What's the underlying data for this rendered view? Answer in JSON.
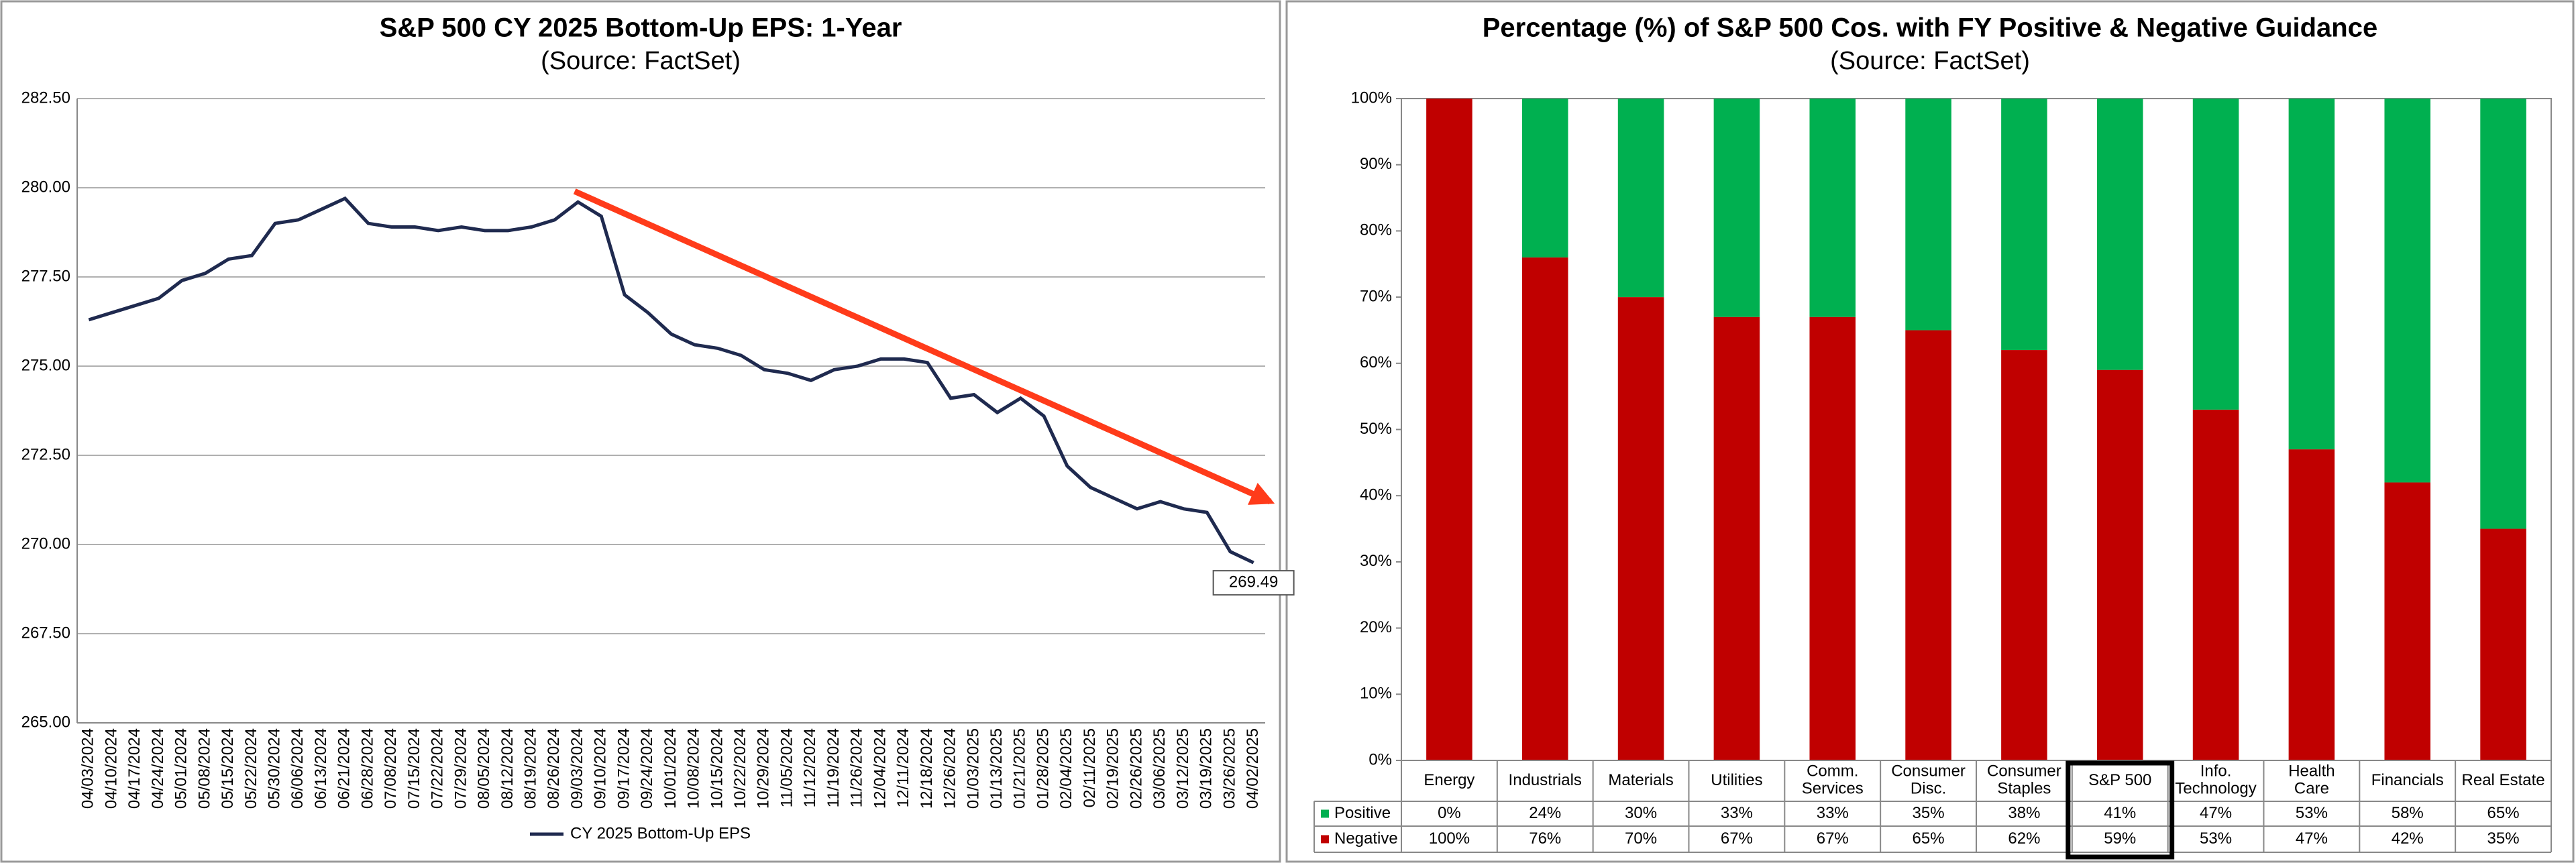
{
  "chart_data": [
    {
      "type": "line",
      "title": "S&P 500 CY 2025 Bottom-Up  EPS: 1-Year",
      "subtitle": "(Source: FactSet)",
      "categories": [
        "04/03/2024",
        "04/10/2024",
        "04/17/2024",
        "04/24/2024",
        "05/01/2024",
        "05/08/2024",
        "05/15/2024",
        "05/22/2024",
        "05/30/2024",
        "06/06/2024",
        "06/13/2024",
        "06/21/2024",
        "06/28/2024",
        "07/08/2024",
        "07/15/2024",
        "07/22/2024",
        "07/29/2024",
        "08/05/2024",
        "08/12/2024",
        "08/19/2024",
        "08/26/2024",
        "09/03/2024",
        "09/10/2024",
        "09/17/2024",
        "09/24/2024",
        "10/01/2024",
        "10/08/2024",
        "10/15/2024",
        "10/22/2024",
        "10/29/2024",
        "11/05/2024",
        "11/12/2024",
        "11/19/2024",
        "11/26/2024",
        "12/04/2024",
        "12/11/2024",
        "12/18/2024",
        "12/26/2024",
        "01/03/2025",
        "01/13/2025",
        "01/21/2025",
        "01/28/2025",
        "02/04/2025",
        "02/11/2025",
        "02/19/2025",
        "02/26/2025",
        "03/06/2025",
        "03/12/2025",
        "03/19/2025",
        "03/26/2025",
        "04/02/2025"
      ],
      "series": [
        {
          "name": "CY 2025 Bottom-Up EPS",
          "color": "#1f2a4f",
          "values": [
            276.3,
            276.5,
            276.7,
            276.9,
            277.4,
            277.6,
            278.0,
            278.1,
            279.0,
            279.1,
            279.4,
            279.7,
            279.0,
            278.9,
            278.9,
            278.8,
            278.9,
            278.8,
            278.8,
            278.9,
            279.1,
            279.6,
            279.2,
            277.0,
            276.5,
            275.9,
            275.6,
            275.5,
            275.3,
            274.9,
            274.8,
            274.6,
            274.9,
            275.0,
            275.2,
            275.2,
            275.1,
            274.1,
            274.2,
            273.7,
            274.1,
            273.6,
            272.2,
            271.6,
            271.3,
            271.0,
            271.2,
            271.0,
            270.9,
            269.8,
            269.49
          ]
        }
      ],
      "annotation": "269.49",
      "ylim": [
        265,
        282.5
      ],
      "yticks": [
        {
          "value": 265,
          "label": "265.00"
        },
        {
          "value": 267.5,
          "label": "267.50"
        },
        {
          "value": 270,
          "label": "270.00"
        },
        {
          "value": 272.5,
          "label": "272.50"
        },
        {
          "value": 275,
          "label": "275.00"
        },
        {
          "value": 277.5,
          "label": "277.50"
        },
        {
          "value": 280,
          "label": "280.00"
        },
        {
          "value": 282.5,
          "label": "282.50"
        }
      ],
      "grid": true
    },
    {
      "type": "stacked_bar",
      "title": "Percentage (%) of S&P 500 Cos. with FY Positive & Negative Guidance",
      "subtitle": "(Source: FactSet)",
      "categories": [
        "Energy",
        "Industrials",
        "Materials",
        "Utilities",
        "Comm.\nServices",
        "Consumer\nDisc.",
        "Consumer\nStaples",
        "S&P 500",
        "Info.\nTechnology",
        "Health\nCare",
        "Financials",
        "Real Estate"
      ],
      "series": [
        {
          "name": "Positive",
          "color": "#00b050",
          "values": [
            0,
            24,
            30,
            33,
            33,
            35,
            38,
            41,
            47,
            53,
            58,
            65
          ],
          "value_labels": [
            "0%",
            "24%",
            "30%",
            "33%",
            "33%",
            "35%",
            "38%",
            "41%",
            "47%",
            "53%",
            "58%",
            "65%"
          ]
        },
        {
          "name": "Negative",
          "color": "#c00000",
          "values": [
            100,
            76,
            70,
            67,
            67,
            65,
            62,
            59,
            53,
            47,
            42,
            35
          ],
          "value_labels": [
            "100%",
            "76%",
            "70%",
            "67%",
            "67%",
            "65%",
            "62%",
            "59%",
            "53%",
            "47%",
            "42%",
            "35%"
          ]
        }
      ],
      "ylim": [
        0,
        100
      ],
      "yticks": [
        {
          "value": 0,
          "label": "0%"
        },
        {
          "value": 10,
          "label": "10%"
        },
        {
          "value": 20,
          "label": "20%"
        },
        {
          "value": 30,
          "label": "30%"
        },
        {
          "value": 40,
          "label": "40%"
        },
        {
          "value": 50,
          "label": "50%"
        },
        {
          "value": 60,
          "label": "60%"
        },
        {
          "value": 70,
          "label": "70%"
        },
        {
          "value": 80,
          "label": "80%"
        },
        {
          "value": 90,
          "label": "90%"
        },
        {
          "value": 100,
          "label": "100%"
        }
      ],
      "grid": false
    }
  ]
}
